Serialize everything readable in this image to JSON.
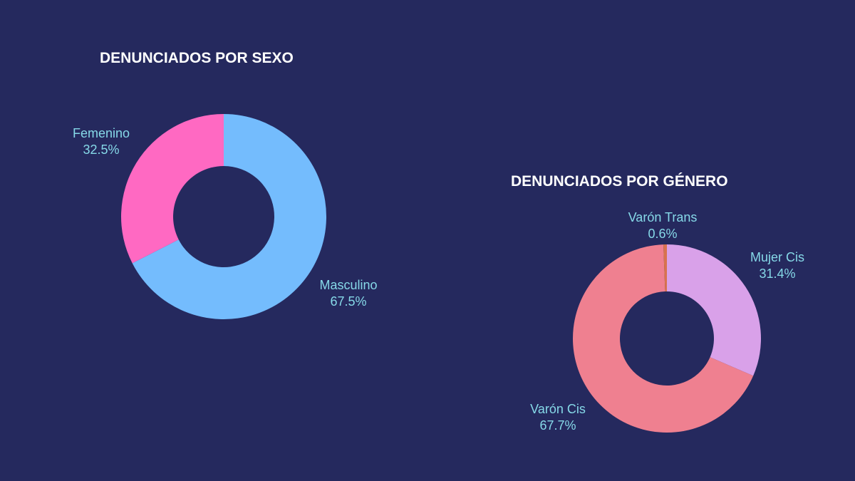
{
  "chart_data": [
    {
      "type": "pie",
      "donut": true,
      "title": "DENUNCIADOS POR SEXO",
      "slices": [
        {
          "label": "Masculino",
          "value": 67.5,
          "display": "67.5%",
          "color": "#74bcfd"
        },
        {
          "label": "Femenino",
          "value": 32.5,
          "display": "32.5%",
          "color": "#ff69c2"
        }
      ]
    },
    {
      "type": "pie",
      "donut": true,
      "title": "DENUNCIADOS POR GÉNERO",
      "slices": [
        {
          "label": "Mujer Cis",
          "value": 31.4,
          "display": "31.4%",
          "color": "#d9a1e9"
        },
        {
          "label": "Varón Cis",
          "value": 67.7,
          "display": "67.7%",
          "color": "#ef8090"
        },
        {
          "label": "Varón Trans",
          "value": 0.6,
          "display": "0.6%",
          "color": "#d8734e"
        }
      ]
    }
  ],
  "background": "#25295e"
}
